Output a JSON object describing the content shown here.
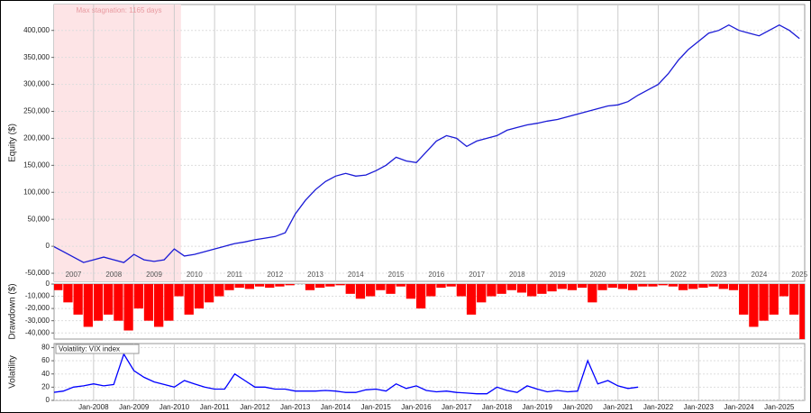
{
  "chart_data": [
    {
      "type": "line",
      "y_label": "Equity ($)",
      "annotation": "Max stagnation: 1165 days",
      "shade": [
        "2007-01",
        "2010-03"
      ],
      "shade_color": "#fde4e6",
      "grid": true,
      "ylim": [
        -65000,
        448000
      ],
      "yticks": [
        {
          "value": -50000,
          "label": "-50,000"
        },
        0,
        {
          "value": 50000,
          "label": "50,000"
        },
        {
          "value": 100000,
          "label": "100,000"
        },
        {
          "value": 150000,
          "label": "150,000"
        },
        {
          "value": 200000,
          "label": "200,000"
        },
        {
          "value": 250000,
          "label": "250,000"
        },
        {
          "value": 300000,
          "label": "300,000"
        },
        {
          "value": 350000,
          "label": "350,000"
        },
        {
          "value": 400000,
          "label": "400,000"
        }
      ],
      "xticks": [
        "2007",
        "2008",
        "2009",
        "2010",
        "2011",
        "2012",
        "2013",
        "2014",
        "2015",
        "2016",
        "2017",
        "2018",
        "2019",
        "2020",
        "2021",
        "2022",
        "2023",
        "2024",
        "2025"
      ],
      "x": [
        "2007-01",
        "2007-04",
        "2007-07",
        "2007-10",
        "2008-01",
        "2008-04",
        "2008-07",
        "2008-10",
        "2009-01",
        "2009-04",
        "2009-07",
        "2009-10",
        "2010-01",
        "2010-04",
        "2010-07",
        "2010-10",
        "2011-01",
        "2011-04",
        "2011-07",
        "2011-10",
        "2012-01",
        "2012-04",
        "2012-07",
        "2012-10",
        "2013-01",
        "2013-04",
        "2013-07",
        "2013-10",
        "2014-01",
        "2014-04",
        "2014-07",
        "2014-10",
        "2015-01",
        "2015-04",
        "2015-07",
        "2015-10",
        "2016-01",
        "2016-04",
        "2016-07",
        "2016-10",
        "2017-01",
        "2017-04",
        "2017-07",
        "2017-10",
        "2018-01",
        "2018-04",
        "2018-07",
        "2018-10",
        "2019-01",
        "2019-04",
        "2019-07",
        "2019-10",
        "2020-01",
        "2020-04",
        "2020-07",
        "2020-10",
        "2021-01",
        "2021-04",
        "2021-07",
        "2021-10",
        "2022-01",
        "2022-04",
        "2022-07",
        "2022-10",
        "2023-01",
        "2023-04",
        "2023-07",
        "2023-10",
        "2024-01",
        "2024-04",
        "2024-07",
        "2024-10",
        "2025-01",
        "2025-04",
        "2025-07"
      ],
      "series": [
        {
          "color": "#1a1ad6",
          "values": [
            0,
            -10000,
            -20000,
            -30000,
            -25000,
            -20000,
            -25000,
            -30000,
            -15000,
            -25000,
            -28000,
            -25000,
            -5000,
            -18000,
            -15000,
            -10000,
            -5000,
            0,
            5000,
            8000,
            12000,
            15000,
            18000,
            25000,
            60000,
            85000,
            105000,
            120000,
            130000,
            135000,
            130000,
            132000,
            140000,
            150000,
            165000,
            158000,
            155000,
            175000,
            195000,
            205000,
            200000,
            185000,
            195000,
            200000,
            205000,
            215000,
            220000,
            225000,
            228000,
            232000,
            235000,
            240000,
            245000,
            250000,
            255000,
            260000,
            262000,
            268000,
            280000,
            290000,
            300000,
            320000,
            345000,
            365000,
            380000,
            395000,
            400000,
            410000,
            400000,
            395000,
            390000,
            400000,
            410000,
            400000,
            385000
          ]
        }
      ]
    },
    {
      "type": "bar",
      "y_label": "Drawdown ($)",
      "grid": true,
      "ylim": [
        -45000,
        0
      ],
      "yticks": [
        {
          "value": -40000,
          "label": "-40,000"
        },
        {
          "value": -30000,
          "label": "-30,000"
        },
        {
          "value": -20000,
          "label": "-20,000"
        },
        {
          "value": -10000,
          "label": "-10,000"
        },
        0
      ],
      "x": [
        "2007-01",
        "2007-04",
        "2007-07",
        "2007-10",
        "2008-01",
        "2008-04",
        "2008-07",
        "2008-10",
        "2009-01",
        "2009-04",
        "2009-07",
        "2009-10",
        "2010-01",
        "2010-04",
        "2010-07",
        "2010-10",
        "2011-01",
        "2011-04",
        "2011-07",
        "2011-10",
        "2012-01",
        "2012-04",
        "2012-07",
        "2012-10",
        "2013-01",
        "2013-04",
        "2013-07",
        "2013-10",
        "2014-01",
        "2014-04",
        "2014-07",
        "2014-10",
        "2015-01",
        "2015-04",
        "2015-07",
        "2015-10",
        "2016-01",
        "2016-04",
        "2016-07",
        "2016-10",
        "2017-01",
        "2017-04",
        "2017-07",
        "2017-10",
        "2018-01",
        "2018-04",
        "2018-07",
        "2018-10",
        "2019-01",
        "2019-04",
        "2019-07",
        "2019-10",
        "2020-01",
        "2020-04",
        "2020-07",
        "2020-10",
        "2021-01",
        "2021-04",
        "2021-07",
        "2021-10",
        "2022-01",
        "2022-04",
        "2022-07",
        "2022-10",
        "2023-01",
        "2023-04",
        "2023-07",
        "2023-10",
        "2024-01",
        "2024-04",
        "2024-07",
        "2024-10",
        "2025-01",
        "2025-04",
        "2025-07"
      ],
      "series": [
        {
          "color": "#ff0000",
          "values": [
            -5000,
            -15000,
            -25000,
            -35000,
            -30000,
            -25000,
            -30000,
            -38000,
            -20000,
            -30000,
            -35000,
            -30000,
            -10000,
            -25000,
            -20000,
            -15000,
            -10000,
            -5000,
            -3000,
            -4000,
            -2000,
            -3000,
            -2000,
            -1000,
            0,
            -5000,
            -3000,
            -2000,
            -1000,
            -8000,
            -12000,
            -10000,
            -5000,
            -8000,
            -2000,
            -12000,
            -20000,
            -10000,
            -3000,
            -2000,
            -10000,
            -25000,
            -15000,
            -10000,
            -8000,
            -5000,
            -7000,
            -10000,
            -8000,
            -6000,
            -4000,
            -5000,
            -3000,
            -15000,
            -5000,
            -3000,
            -4000,
            -5000,
            -2000,
            -2000,
            -1000,
            -2000,
            -5000,
            -4000,
            -3000,
            -2000,
            -4000,
            -5000,
            -25000,
            -35000,
            -30000,
            -25000,
            -10000,
            -25000,
            -45000
          ]
        }
      ]
    },
    {
      "type": "line",
      "y_label": "Volatility",
      "grid": true,
      "ylim": [
        0,
        86
      ],
      "yticks": [
        0,
        20,
        40,
        60,
        80
      ],
      "xticks": [
        {
          "value": "2008-01",
          "label": "Jan-2008"
        },
        {
          "value": "2009-01",
          "label": "Jan-2009"
        },
        {
          "value": "2010-01",
          "label": "Jan-2010"
        },
        {
          "value": "2011-01",
          "label": "Jan-2011"
        },
        {
          "value": "2012-01",
          "label": "Jan-2012"
        },
        {
          "value": "2013-01",
          "label": "Jan-2013"
        },
        {
          "value": "2014-01",
          "label": "Jan-2014"
        },
        {
          "value": "2015-01",
          "label": "Jan-2015"
        },
        {
          "value": "2016-01",
          "label": "Jan-2016"
        },
        {
          "value": "2017-01",
          "label": "Jan-2017"
        },
        {
          "value": "2018-01",
          "label": "Jan-2018"
        },
        {
          "value": "2019-01",
          "label": "Jan-2019"
        },
        {
          "value": "2020-01",
          "label": "Jan-2020"
        },
        {
          "value": "2021-01",
          "label": "Jan-2021"
        },
        {
          "value": "2022-01",
          "label": "Jan-2022"
        },
        {
          "value": "2023-01",
          "label": "Jan-2023"
        },
        {
          "value": "2024-01",
          "label": "Jan-2024"
        },
        {
          "value": "2025-01",
          "label": "Jan-2025"
        }
      ],
      "x": [
        "2007-01",
        "2007-04",
        "2007-07",
        "2007-10",
        "2008-01",
        "2008-04",
        "2008-07",
        "2008-10",
        "2009-01",
        "2009-04",
        "2009-07",
        "2009-10",
        "2010-01",
        "2010-04",
        "2010-07",
        "2010-10",
        "2011-01",
        "2011-04",
        "2011-07",
        "2011-10",
        "2012-01",
        "2012-04",
        "2012-07",
        "2012-10",
        "2013-01",
        "2013-04",
        "2013-07",
        "2013-10",
        "2014-01",
        "2014-04",
        "2014-07",
        "2014-10",
        "2015-01",
        "2015-04",
        "2015-07",
        "2015-10",
        "2016-01",
        "2016-04",
        "2016-07",
        "2016-10",
        "2017-01",
        "2017-04",
        "2017-07",
        "2017-10",
        "2018-01",
        "2018-04",
        "2018-07",
        "2018-10",
        "2019-01",
        "2019-04",
        "2019-07",
        "2019-10",
        "2020-01",
        "2020-04",
        "2020-07",
        "2020-10",
        "2021-01",
        "2021-04",
        "2021-07"
      ],
      "series": [
        {
          "name": "Volatility: VIX index",
          "color": "#0000ff",
          "values": [
            12,
            14,
            20,
            22,
            25,
            22,
            24,
            70,
            45,
            35,
            28,
            24,
            20,
            30,
            25,
            20,
            17,
            17,
            40,
            30,
            20,
            20,
            17,
            17,
            14,
            14,
            14,
            15,
            14,
            12,
            12,
            16,
            17,
            14,
            25,
            18,
            22,
            15,
            13,
            14,
            12,
            11,
            10,
            10,
            20,
            15,
            12,
            22,
            17,
            13,
            15,
            13,
            14,
            60,
            25,
            30,
            22,
            18,
            20
          ]
        }
      ]
    }
  ]
}
